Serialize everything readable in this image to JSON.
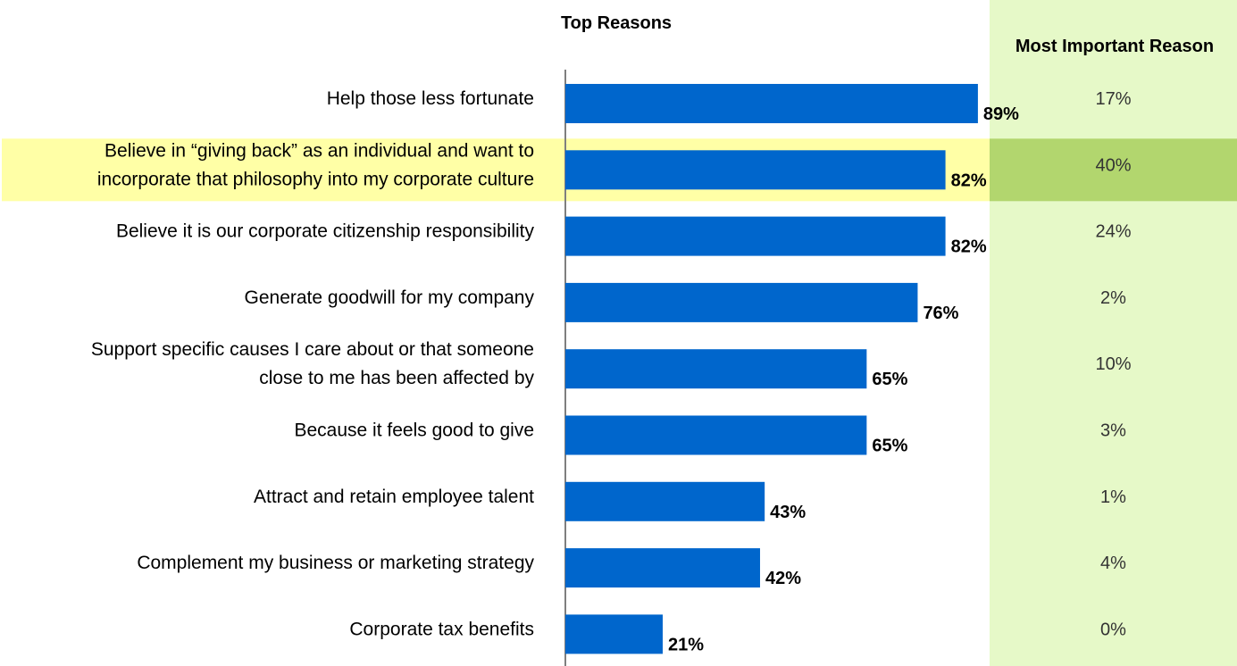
{
  "chart_data": {
    "type": "bar",
    "orientation": "horizontal",
    "title": "Top  Reasons",
    "categories": [
      [
        "Help those less fortunate"
      ],
      [
        "Believe in “giving back” as an individual and want to",
        "incorporate that philosophy into my corporate culture"
      ],
      [
        "Believe it is our corporate citizenship responsibility"
      ],
      [
        "Generate goodwill for my company"
      ],
      [
        "Support specific causes I care about or that someone",
        "close to me has been affected by"
      ],
      [
        "Because it feels good to give"
      ],
      [
        "Attract and retain employee talent"
      ],
      [
        "Complement my business or marketing strategy"
      ],
      [
        "Corporate tax benefits"
      ]
    ],
    "values": [
      89,
      82,
      82,
      76,
      65,
      65,
      43,
      42,
      21
    ],
    "value_labels": [
      "89%",
      "82%",
      "82%",
      "76%",
      "65%",
      "65%",
      "43%",
      "42%",
      "21%"
    ],
    "xlim": [
      0,
      100
    ],
    "bar_color": "#0066CC",
    "highlight_index": 1,
    "highlight_color": "#FFFFA6",
    "side_column": {
      "title": "Most Important Reason",
      "values": [
        "17%",
        "40%",
        "24%",
        "2%",
        "10%",
        "3%",
        "1%",
        "4%",
        "0%"
      ],
      "background_color": "#E6F9C8",
      "highlight_color": "#B2D66E"
    }
  }
}
